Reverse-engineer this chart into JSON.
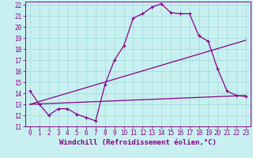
{
  "background_color": "#c8f0f0",
  "grid_color": "#a0d8d8",
  "line_color": "#880088",
  "marker": "+",
  "xlabel": "Windchill (Refroidissement éolien,°C)",
  "xlim": [
    -0.5,
    23.5
  ],
  "ylim": [
    11,
    22.3
  ],
  "yticks": [
    11,
    12,
    13,
    14,
    15,
    16,
    17,
    18,
    19,
    20,
    21,
    22
  ],
  "xticks": [
    0,
    1,
    2,
    3,
    4,
    5,
    6,
    7,
    8,
    9,
    10,
    11,
    12,
    13,
    14,
    15,
    16,
    17,
    18,
    19,
    20,
    21,
    22,
    23
  ],
  "curve1_x": [
    0,
    1,
    2,
    3,
    4,
    5,
    6,
    7,
    8,
    9,
    10,
    11,
    12,
    13,
    14,
    15,
    16,
    17,
    18,
    19,
    20,
    21,
    22,
    23
  ],
  "curve1_y": [
    14.2,
    13.0,
    12.0,
    12.6,
    12.6,
    12.1,
    11.8,
    11.5,
    14.8,
    17.0,
    18.3,
    20.8,
    21.2,
    21.8,
    22.1,
    21.3,
    21.2,
    21.2,
    19.2,
    18.7,
    16.2,
    14.2,
    13.8,
    13.7
  ],
  "curve2_x": [
    0,
    23
  ],
  "curve2_y": [
    13.0,
    18.8
  ],
  "curve3_x": [
    0,
    23
  ],
  "curve3_y": [
    13.0,
    13.8
  ],
  "tick_fontsize": 5.5,
  "xlabel_fontsize": 6.5,
  "line_width": 0.9,
  "marker_size": 3.5
}
